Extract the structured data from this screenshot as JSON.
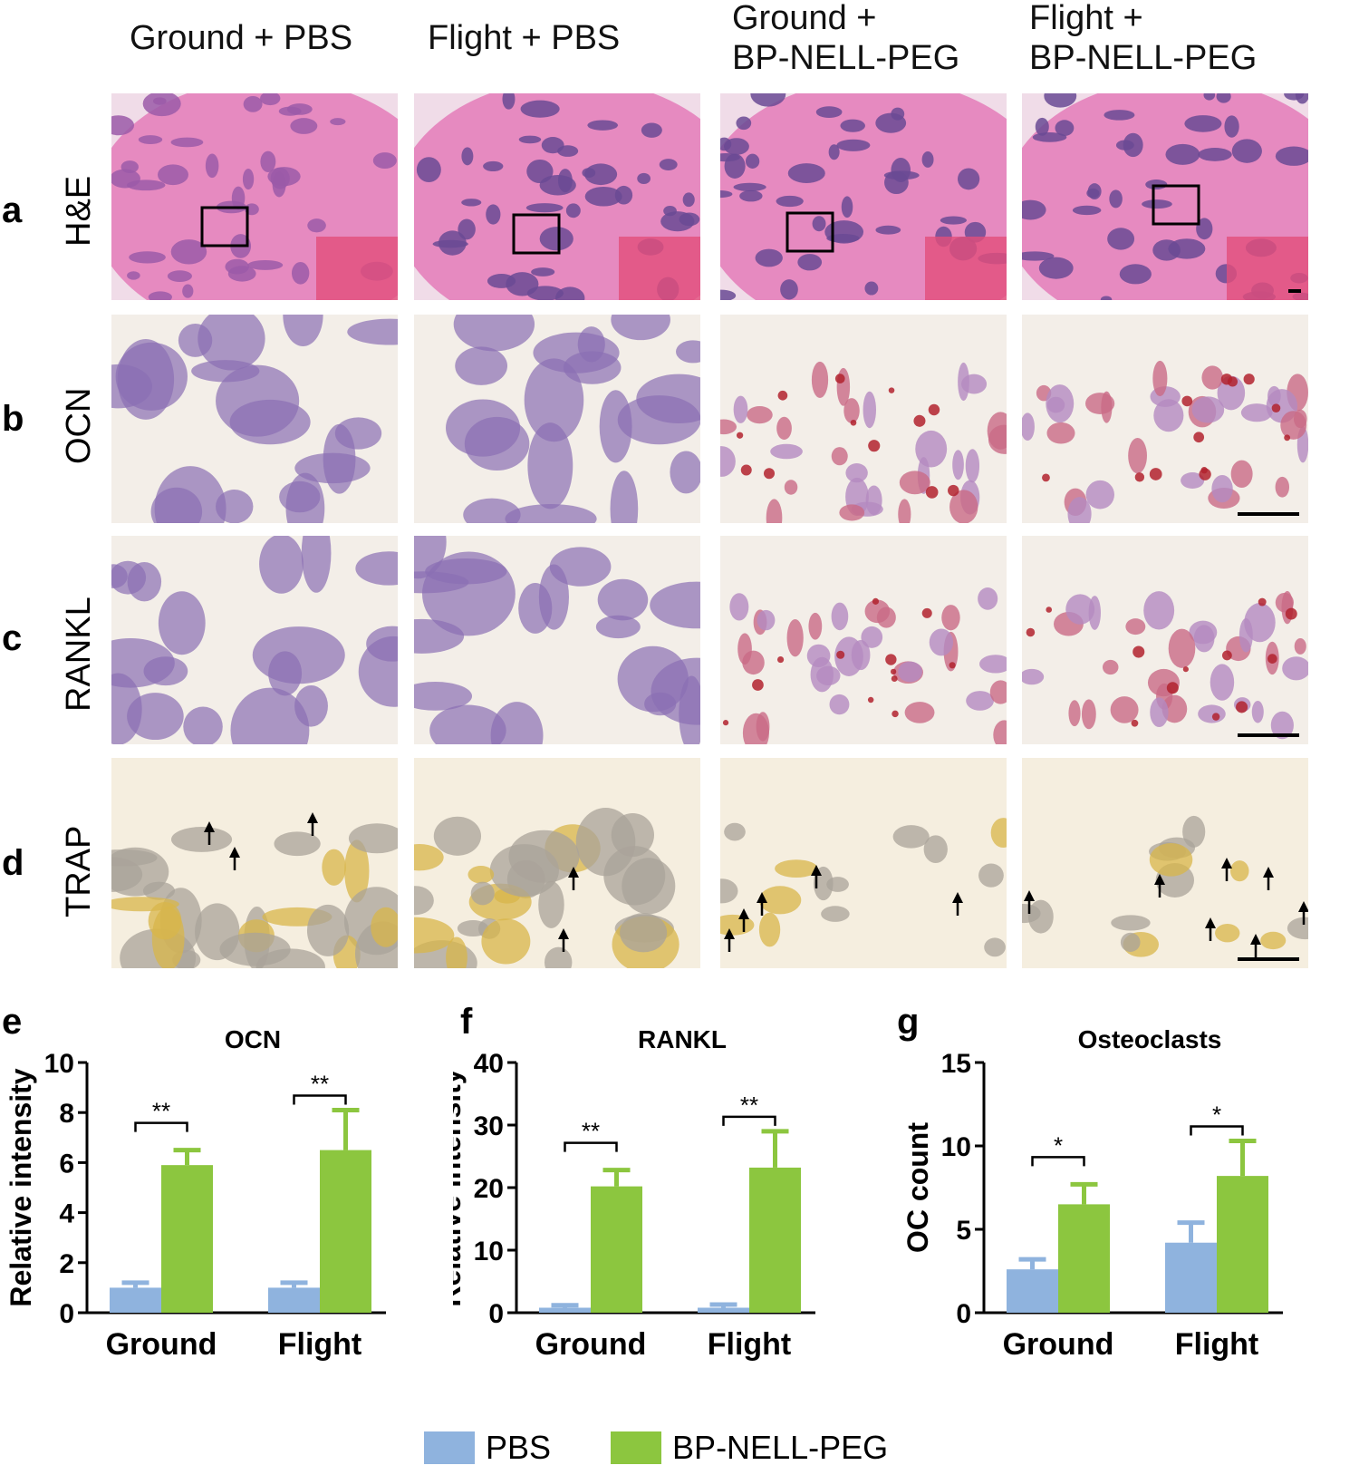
{
  "columns": [
    {
      "line1": "Ground + PBS",
      "line2": ""
    },
    {
      "line1": "Flight + PBS",
      "line2": ""
    },
    {
      "line1": "Ground +",
      "line2": "BP-NELL-PEG"
    },
    {
      "line1": "Flight +",
      "line2": "BP-NELL-PEG"
    }
  ],
  "rows": [
    {
      "letter": "a",
      "stain": "H&E"
    },
    {
      "letter": "b",
      "stain": "OCN"
    },
    {
      "letter": "c",
      "stain": "RANKL"
    },
    {
      "letter": "d",
      "stain": "TRAP"
    }
  ],
  "colors": {
    "pbs": "#8fb3de",
    "nell": "#8cc63f",
    "he_pink": "#e68ac0",
    "he_purple": "#6a4a94",
    "ihc_bg": "#f3eee8",
    "trap_bg": "#f5eedf"
  },
  "legend": [
    {
      "label": "PBS",
      "color": "#8fb3de"
    },
    {
      "label": "BP-NELL-PEG",
      "color": "#8cc63f"
    }
  ],
  "chart_data": [
    {
      "panel": "e",
      "type": "bar",
      "title": "OCN",
      "ylabel": "Relative intensity",
      "categories": [
        "Ground",
        "Flight"
      ],
      "ylim": [
        0,
        10
      ],
      "yticks": [
        "0",
        "2",
        "4",
        "6",
        "8",
        "10"
      ],
      "series": [
        {
          "name": "PBS",
          "values": [
            1.0,
            1.0
          ],
          "errors": [
            0.2,
            0.2
          ]
        },
        {
          "name": "BP-NELL-PEG",
          "values": [
            5.9,
            6.5
          ],
          "errors": [
            0.6,
            1.6
          ]
        }
      ],
      "significance": [
        "**",
        "**"
      ]
    },
    {
      "panel": "f",
      "type": "bar",
      "title": "RANKL",
      "ylabel": "Relative intensity",
      "categories": [
        "Ground",
        "Flight"
      ],
      "ylim": [
        0,
        40
      ],
      "yticks": [
        "0",
        "10",
        "20",
        "30",
        "40"
      ],
      "series": [
        {
          "name": "PBS",
          "values": [
            0.8,
            0.8
          ],
          "errors": [
            0.4,
            0.5
          ]
        },
        {
          "name": "BP-NELL-PEG",
          "values": [
            20.2,
            23.2
          ],
          "errors": [
            2.6,
            5.8
          ]
        }
      ],
      "significance": [
        "**",
        "**"
      ]
    },
    {
      "panel": "g",
      "type": "bar",
      "title": "Osteoclasts",
      "ylabel": "OC count",
      "categories": [
        "Ground",
        "Flight"
      ],
      "ylim": [
        0,
        15
      ],
      "yticks": [
        "0",
        "5",
        "10",
        "15"
      ],
      "series": [
        {
          "name": "PBS",
          "values": [
            2.6,
            4.2
          ],
          "errors": [
            0.6,
            1.2
          ]
        },
        {
          "name": "BP-NELL-PEG",
          "values": [
            6.5,
            8.2
          ],
          "errors": [
            1.2,
            2.1
          ]
        }
      ],
      "significance": [
        "*",
        "*"
      ]
    }
  ]
}
